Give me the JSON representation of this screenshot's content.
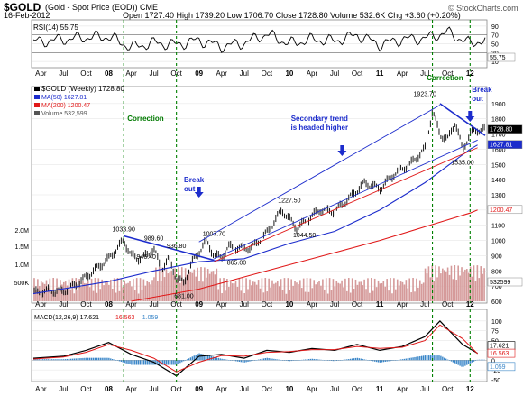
{
  "header": {
    "symbol": "$GOLD",
    "description": "(Gold - Spot Price (EOD))",
    "exchange": "CME",
    "date": "16-Feb-2012",
    "quote": "Open 1727.40  High 1739.20  Low 1706.70  Close 1728.80  Volume 532.6K  Chg +3.60 (+0.20%)",
    "brand": "© StockCharts.com"
  },
  "colors": {
    "price_bar": "#000000",
    "ma50": "#1c2ccc",
    "ma200": "#e01818",
    "volume": "#d59a9a",
    "rsi_fill": "#909090",
    "macd_line": "#000000",
    "signal_line": "#e01818",
    "histogram": "#3a86c8",
    "annotation_blue": "#1c2ccc",
    "annotation_green": "#007a00",
    "correction_line": "#008000"
  },
  "chart_data": [
    {
      "type": "line",
      "panel": "rsi",
      "legend": "RSI(14) 55.75",
      "ylim": [
        0,
        100
      ],
      "y_ticks": [
        10,
        30,
        50,
        70,
        90
      ],
      "reference_levels": [
        30,
        70
      ],
      "last_value_label": "55.75",
      "x": [
        "2007-04",
        "2007-07",
        "2007-10",
        "2008-01",
        "2008-04",
        "2008-07",
        "2008-10",
        "2009-01",
        "2009-04",
        "2009-07",
        "2009-10",
        "2010-01",
        "2010-04",
        "2010-07",
        "2010-10",
        "2011-01",
        "2011-04",
        "2011-07",
        "2011-10",
        "2012-01",
        "2012-02"
      ],
      "values": [
        55,
        60,
        64,
        66,
        42,
        52,
        48,
        58,
        44,
        52,
        72,
        50,
        60,
        56,
        70,
        48,
        60,
        62,
        76,
        50,
        56
      ]
    },
    {
      "type": "line",
      "panel": "price",
      "title": "$GOLD (Weekly) 1728.80",
      "legend": [
        "$GOLD (Weekly) 1728.80",
        "MA(50) 1627.81",
        "MA(200) 1200.47",
        "Volume 532,599"
      ],
      "ylim": [
        600,
        2000
      ],
      "y_ticks": [
        600,
        700,
        800,
        900,
        1000,
        1100,
        1200,
        1300,
        1400,
        1500,
        1600,
        1700,
        1800,
        1900
      ],
      "volume_ticks": [
        "500K",
        "1.0M",
        "1.5M",
        "2.0M"
      ],
      "series": [
        {
          "name": "$GOLD (Weekly)",
          "x": [
            "2007-03",
            "2007-05",
            "2007-07",
            "2007-09",
            "2007-11",
            "2008-01",
            "2008-03",
            "2008-04",
            "2008-05",
            "2008-06",
            "2008-07",
            "2008-08",
            "2008-09",
            "2008-10",
            "2008-11",
            "2008-12",
            "2009-02",
            "2009-03",
            "2009-04",
            "2009-05",
            "2009-06",
            "2009-08",
            "2009-10",
            "2009-12",
            "2010-02",
            "2010-05",
            "2010-07",
            "2010-09",
            "2010-11",
            "2011-01",
            "2011-03",
            "2011-05",
            "2011-07",
            "2011-08",
            "2011-09",
            "2011-10",
            "2011-11",
            "2011-12",
            "2012-01",
            "2012-02"
          ],
          "values": [
            655,
            670,
            665,
            720,
            800,
            880,
            1000,
            900,
            880,
            900,
            946,
            810,
            880,
            750,
            720,
            850,
            1000,
            900,
            890,
            960,
            950,
            950,
            1050,
            1200,
            1080,
            1200,
            1190,
            1280,
            1380,
            1340,
            1440,
            1500,
            1600,
            1850,
            1700,
            1660,
            1780,
            1600,
            1700,
            1728.8
          ]
        },
        {
          "name": "MA(50)",
          "x": [
            "2007-03",
            "2008-01",
            "2008-07",
            "2009-01",
            "2009-07",
            "2010-01",
            "2010-07",
            "2011-01",
            "2011-07",
            "2012-01",
            "2012-02"
          ],
          "values": [
            650,
            730,
            800,
            860,
            880,
            980,
            1060,
            1200,
            1380,
            1600,
            1627.81
          ]
        },
        {
          "name": "MA(200)",
          "x": [
            "2008-04",
            "2009-01",
            "2009-07",
            "2010-01",
            "2010-07",
            "2011-01",
            "2011-07",
            "2012-01",
            "2012-02"
          ],
          "values": [
            600,
            680,
            760,
            840,
            920,
            1000,
            1090,
            1180,
            1200.47
          ]
        }
      ],
      "last_values": [
        "1728.80",
        "1627.81",
        "1200.47",
        "532599"
      ],
      "data_labels": [
        "1033.90",
        "989.60",
        "936.80",
        "946.40",
        "1007.70",
        "865.00",
        "681.00",
        "1227.50",
        "1044.50",
        "1923.70",
        "1535.00"
      ],
      "annotations": {
        "correction_left": "Correction",
        "correction_right": "Correction",
        "breakout_left": "Break\nout",
        "breakout_right": "Break\nout",
        "trend": "Secondary trend\nis headed higher"
      }
    },
    {
      "type": "line",
      "panel": "macd",
      "legend": [
        "MACD(12,26,9) 17.621",
        "16.563",
        "1.059"
      ],
      "ylim": [
        -50,
        125
      ],
      "y_ticks": [
        -50,
        -25,
        0,
        25,
        50,
        75,
        100
      ],
      "series": [
        {
          "name": "MACD(12,26,9)",
          "x": [
            "2007-03",
            "2007-07",
            "2007-10",
            "2008-01",
            "2008-04",
            "2008-07",
            "2008-10",
            "2009-01",
            "2009-04",
            "2009-07",
            "2009-10",
            "2010-01",
            "2010-04",
            "2010-07",
            "2010-10",
            "2011-01",
            "2011-04",
            "2011-07",
            "2011-09",
            "2011-12",
            "2012-02"
          ],
          "values": [
            5,
            10,
            25,
            45,
            15,
            -5,
            -40,
            10,
            15,
            5,
            25,
            20,
            30,
            25,
            40,
            25,
            35,
            60,
            100,
            40,
            17.621
          ]
        },
        {
          "name": "Signal",
          "x": [
            "2007-03",
            "2007-07",
            "2007-10",
            "2008-01",
            "2008-04",
            "2008-07",
            "2008-10",
            "2009-01",
            "2009-04",
            "2009-07",
            "2009-10",
            "2010-01",
            "2010-04",
            "2010-07",
            "2010-10",
            "2011-01",
            "2011-04",
            "2011-07",
            "2011-09",
            "2011-12",
            "2012-02"
          ],
          "values": [
            3,
            8,
            20,
            40,
            25,
            5,
            -30,
            -5,
            12,
            10,
            20,
            22,
            27,
            27,
            35,
            30,
            33,
            50,
            90,
            55,
            16.563
          ]
        }
      ],
      "last_values": [
        "17.621",
        "16.563",
        "1.059"
      ]
    }
  ],
  "x_axis": {
    "labels": [
      "Apr",
      "Jul",
      "Oct",
      "08",
      "Apr",
      "Jul",
      "Oct",
      "09",
      "Apr",
      "Jul",
      "Oct",
      "10",
      "Apr",
      "Jul",
      "Oct",
      "11",
      "Apr",
      "Jul",
      "Oct",
      "12"
    ]
  }
}
